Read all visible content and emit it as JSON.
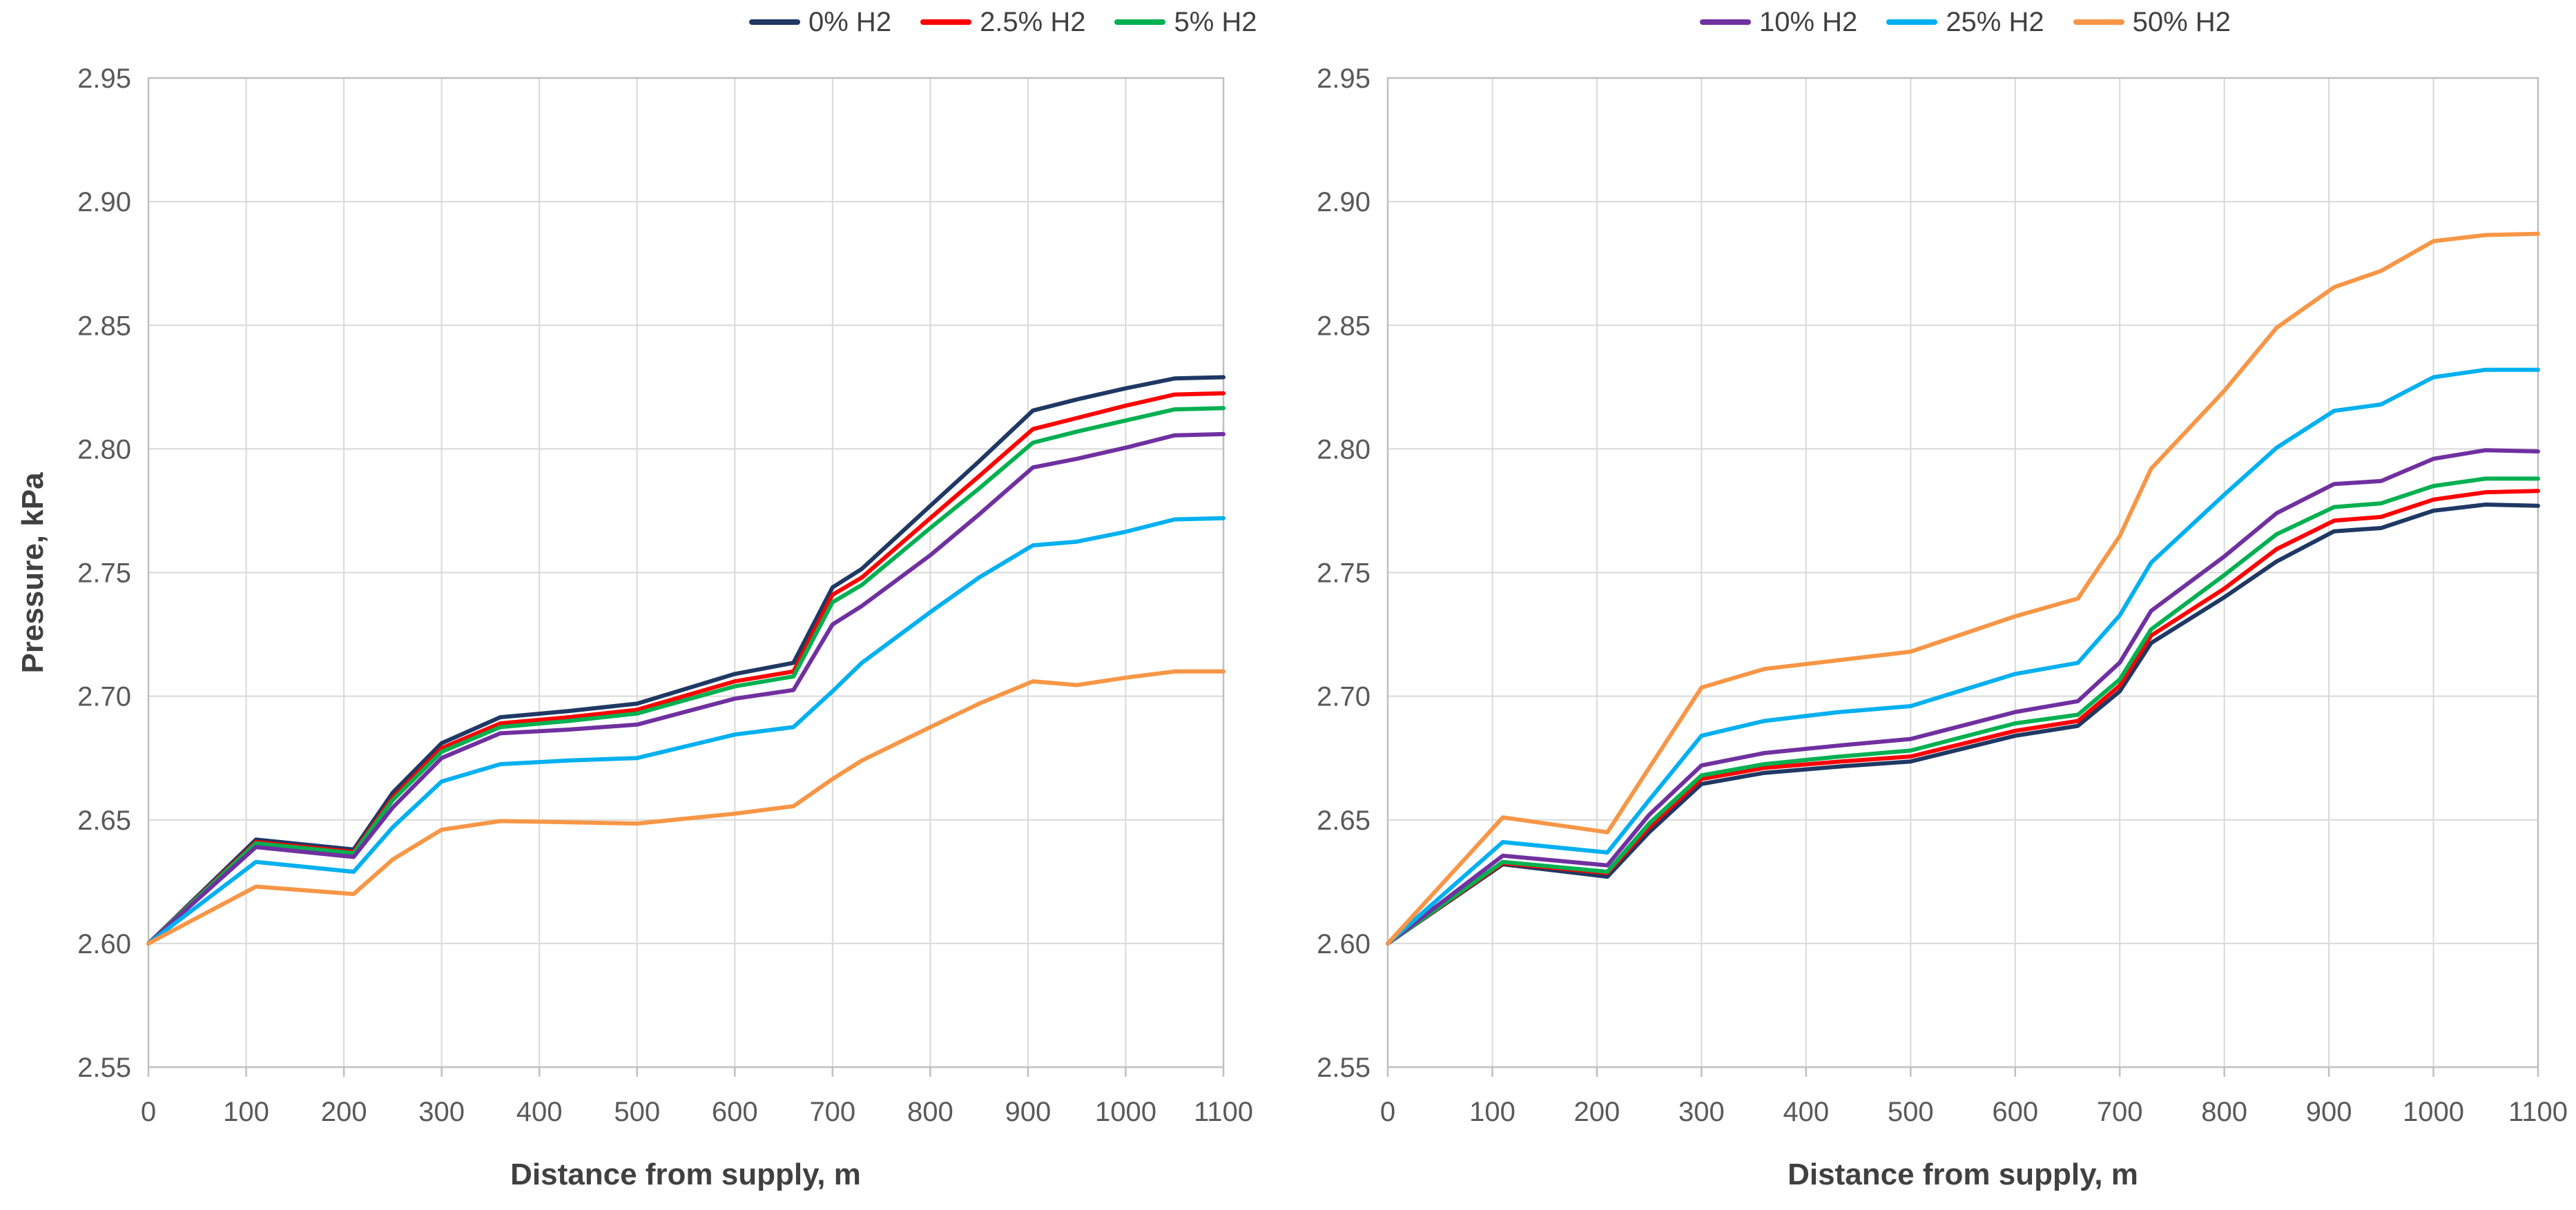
{
  "figure": {
    "background": "#ffffff",
    "tick_color": "#595959",
    "axis_title_color": "#404040",
    "gridline_color": "#d9d9d9",
    "border_color": "#bfbfbf"
  },
  "chart_data": [
    {
      "type": "line",
      "title": "",
      "xlabel": "Distance from supply, m",
      "ylabel": "Pressure, kPa",
      "xlim": [
        0,
        1100
      ],
      "ylim": [
        2.55,
        2.95
      ],
      "x_ticks": [
        0,
        100,
        200,
        300,
        400,
        500,
        600,
        700,
        800,
        900,
        1000,
        1100
      ],
      "y_ticks": [
        2.55,
        2.6,
        2.65,
        2.7,
        2.75,
        2.8,
        2.85,
        2.9,
        2.95
      ],
      "grid": true,
      "legend_position": "top",
      "legend": [
        {
          "label": "0% H2",
          "color": "#1F3864"
        },
        {
          "label": "2.5% H2",
          "color": "#FF0000"
        },
        {
          "label": "5% H2",
          "color": "#00B050"
        }
      ],
      "x": [
        0,
        110,
        210,
        250,
        300,
        360,
        430,
        500,
        600,
        660,
        700,
        730,
        800,
        850,
        905,
        950,
        1000,
        1050,
        1100
      ],
      "series": [
        {
          "name": "0% H2",
          "color": "#1F3864",
          "values": [
            2.6,
            2.642,
            2.638,
            2.661,
            2.681,
            2.6915,
            2.694,
            2.697,
            2.709,
            2.7135,
            2.744,
            2.7515,
            2.777,
            2.795,
            2.8155,
            2.82,
            2.8245,
            2.8285,
            2.829
          ]
        },
        {
          "name": "2.5% H2",
          "color": "#FF0000",
          "values": [
            2.6,
            2.641,
            2.637,
            2.659,
            2.679,
            2.689,
            2.6915,
            2.6945,
            2.706,
            2.71,
            2.741,
            2.748,
            2.772,
            2.789,
            2.808,
            2.8125,
            2.8175,
            2.822,
            2.8225
          ]
        },
        {
          "name": "5% H2",
          "color": "#00B050",
          "values": [
            2.6,
            2.6405,
            2.6365,
            2.658,
            2.6775,
            2.6875,
            2.69,
            2.693,
            2.704,
            2.708,
            2.738,
            2.745,
            2.768,
            2.784,
            2.8025,
            2.807,
            2.8115,
            2.816,
            2.8165
          ]
        },
        {
          "name": "10% H2",
          "color": "#7030A0",
          "values": [
            2.6,
            2.639,
            2.635,
            2.655,
            2.675,
            2.685,
            2.6865,
            2.6885,
            2.699,
            2.7025,
            2.729,
            2.7365,
            2.757,
            2.7735,
            2.7925,
            2.796,
            2.8005,
            2.8055,
            2.806
          ]
        },
        {
          "name": "25% H2",
          "color": "#00B0F0",
          "values": [
            2.6,
            2.633,
            2.629,
            2.647,
            2.6655,
            2.6725,
            2.674,
            2.675,
            2.6845,
            2.6875,
            2.702,
            2.7135,
            2.734,
            2.748,
            2.761,
            2.7625,
            2.7665,
            2.7715,
            2.772
          ]
        },
        {
          "name": "50% H2",
          "color": "#F79646",
          "values": [
            2.6,
            2.623,
            2.62,
            2.634,
            2.646,
            2.6495,
            2.649,
            2.6485,
            2.6525,
            2.6555,
            2.6665,
            2.674,
            2.6875,
            2.697,
            2.706,
            2.7045,
            2.7075,
            2.71,
            2.71
          ]
        }
      ]
    },
    {
      "type": "line",
      "title": "",
      "xlabel": "Distance from supply, m",
      "ylabel": "",
      "xlim": [
        0,
        1100
      ],
      "ylim": [
        2.55,
        2.95
      ],
      "x_ticks": [
        0,
        100,
        200,
        300,
        400,
        500,
        600,
        700,
        800,
        900,
        1000,
        1100
      ],
      "y_ticks": [
        2.55,
        2.6,
        2.65,
        2.7,
        2.75,
        2.8,
        2.85,
        2.9,
        2.95
      ],
      "grid": true,
      "legend_position": "top",
      "legend": [
        {
          "label": "10% H2",
          "color": "#7030A0"
        },
        {
          "label": "25% H2",
          "color": "#00B0F0"
        },
        {
          "label": "50% H2",
          "color": "#F79646"
        }
      ],
      "x": [
        0,
        110,
        210,
        250,
        300,
        360,
        430,
        500,
        600,
        660,
        700,
        730,
        800,
        850,
        905,
        950,
        1000,
        1050,
        1100
      ],
      "series": [
        {
          "name": "0% H2",
          "color": "#1F3864",
          "values": [
            2.6,
            2.632,
            2.627,
            2.645,
            2.6645,
            2.669,
            2.6715,
            2.6736,
            2.684,
            2.688,
            2.702,
            2.7215,
            2.74,
            2.7545,
            2.7667,
            2.768,
            2.775,
            2.7775,
            2.777
          ]
        },
        {
          "name": "2.5% H2",
          "color": "#FF0000",
          "values": [
            2.6,
            2.6325,
            2.6285,
            2.647,
            2.6665,
            2.671,
            2.6735,
            2.6756,
            2.686,
            2.69,
            2.7043,
            2.7245,
            2.7435,
            2.7595,
            2.771,
            2.7725,
            2.7795,
            2.7825,
            2.783
          ]
        },
        {
          "name": "5% H2",
          "color": "#00B050",
          "values": [
            2.6,
            2.633,
            2.629,
            2.6485,
            2.668,
            2.6725,
            2.6755,
            2.678,
            2.689,
            2.6925,
            2.7068,
            2.727,
            2.749,
            2.7655,
            2.7765,
            2.778,
            2.785,
            2.788,
            2.788
          ]
        },
        {
          "name": "10% H2",
          "color": "#7030A0",
          "values": [
            2.6,
            2.6355,
            2.6316,
            2.652,
            2.672,
            2.677,
            2.68,
            2.6827,
            2.6936,
            2.698,
            2.7136,
            2.7345,
            2.7565,
            2.774,
            2.7858,
            2.787,
            2.796,
            2.7995,
            2.799
          ]
        },
        {
          "name": "25% H2",
          "color": "#00B0F0",
          "values": [
            2.6,
            2.641,
            2.6368,
            2.658,
            2.684,
            2.69,
            2.6935,
            2.696,
            2.709,
            2.7135,
            2.7327,
            2.754,
            2.7815,
            2.8005,
            2.8154,
            2.818,
            2.829,
            2.832,
            2.832
          ]
        },
        {
          "name": "50% H2",
          "color": "#F79646",
          "values": [
            2.6,
            2.651,
            2.645,
            2.671,
            2.7035,
            2.711,
            2.7145,
            2.718,
            2.7323,
            2.7395,
            2.7648,
            2.792,
            2.8235,
            2.849,
            2.8654,
            2.872,
            2.884,
            2.8865,
            2.887
          ]
        }
      ]
    }
  ]
}
